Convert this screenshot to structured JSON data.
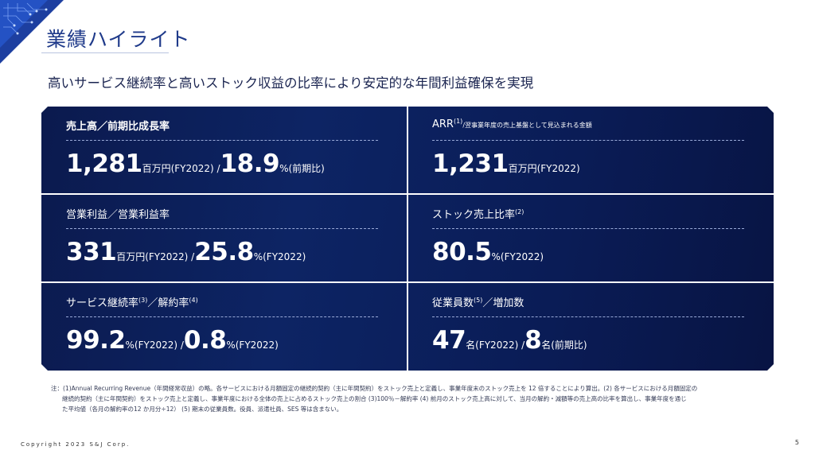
{
  "title": "業績ハイライト",
  "subtitle": "高いサービス継続率と高いストック収益の比率により安定的な年間利益確保を実現",
  "metrics": {
    "sales": {
      "label": "売上高／前期比成長率",
      "value1": "1,281",
      "unit1": "百万円(FY2022) /",
      "value2": "18.9",
      "unit2": "%(前期比)"
    },
    "arr": {
      "label": "ARR",
      "sup": "(1)",
      "note": "/翌事業年度の売上基盤として見込まれる金額",
      "value1": "1,231",
      "unit1": "百万円(FY2022)"
    },
    "op": {
      "label": "営業利益／営業利益率",
      "value1": "331",
      "unit1": "百万円(FY2022) /",
      "value2": "25.8",
      "unit2": "%(FY2022)"
    },
    "stock": {
      "label": "ストック売上比率",
      "sup": "(2)",
      "value1": "80.5",
      "unit1": "%(FY2022)"
    },
    "cont": {
      "label_a": "サービス継続率",
      "sup_a": "(3)",
      "label_b": "／解約率",
      "sup_b": "(4)",
      "value1": "99.2",
      "unit1": "%(FY2022) /",
      "value2": "0.8",
      "unit2": "%(FY2022)"
    },
    "emp": {
      "label_a": "従業員数",
      "sup_a": "(5)",
      "label_b": "／増加数",
      "value1": "47",
      "unit1": "名(FY2022) /",
      "value2": "8",
      "unit2": "名(前期比)"
    }
  },
  "notes": {
    "line1": "注：(1)Annual Recurring Revenue（年間経常収益）の略。各サービスにおける月額固定の継続的契約（主に年間契約）をストック売上と定義し、事業年度末のストック売上を 12 倍することにより算出。(2) 各サービスにおける月額固定の",
    "line2": "継続的契約（主に年間契約）をストック売上と定義し、事業年度における全体の売上に占めるストック売上の割合 (3)100％－解約率 (4) 前月のストック売上高に対して、当月の解約・減額等の売上高の比率を算出し、事業年度を通じ",
    "line3": "た平均値（各月の解約率の12 か月分÷12） (5) 期末の従業員数。役員、派遣社員、SES 等は含まない。"
  },
  "footer": {
    "copyright": "Copyright 2023 S&J Corp.",
    "page": "5"
  },
  "colors": {
    "panel": "#0d2464",
    "title": "#1f3a8a"
  }
}
